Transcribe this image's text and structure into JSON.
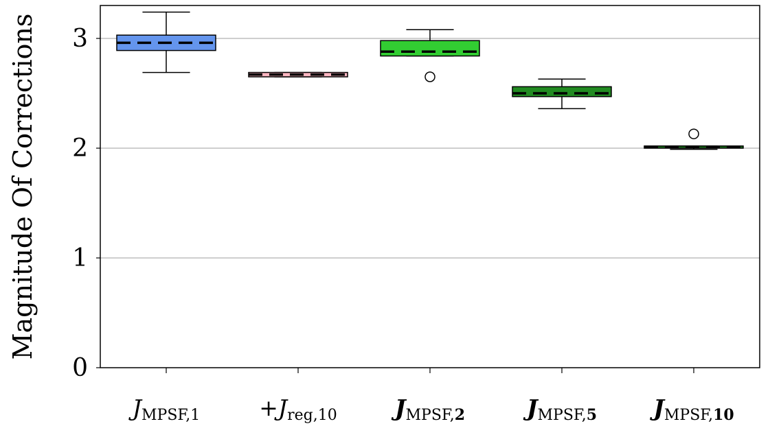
{
  "chart_data": {
    "type": "box",
    "title": "",
    "xlabel": "",
    "ylabel": "Magnitude Of Corrections",
    "ylim": [
      0,
      3.3
    ],
    "yticks": [
      "0",
      "1",
      "2",
      "3"
    ],
    "grid": "horizontal",
    "median_line_style": "dashed",
    "categories": [
      {
        "prefix": "",
        "main": "J",
        "sub": "MPSF,",
        "subnum": "1",
        "bold": false
      },
      {
        "prefix": "+",
        "main": "J",
        "sub": "reg,",
        "subnum": "10",
        "bold": false
      },
      {
        "prefix": "",
        "main": "J",
        "sub": "MPSF,",
        "subnum": "2",
        "bold": true
      },
      {
        "prefix": "",
        "main": "J",
        "sub": "MPSF,",
        "subnum": "5",
        "bold": true
      },
      {
        "prefix": "",
        "main": "J",
        "sub": "MPSF,",
        "subnum": "10",
        "bold": true
      }
    ],
    "boxes": [
      {
        "whisker_low": 2.69,
        "q1": 2.89,
        "median": 2.96,
        "q3": 3.03,
        "whisker_high": 3.24,
        "outliers": [],
        "color": "#6495ED"
      },
      {
        "whisker_low": 2.65,
        "q1": 2.65,
        "median": 2.67,
        "q3": 2.69,
        "whisker_high": 2.69,
        "outliers": [],
        "color": "#FFB6C1"
      },
      {
        "whisker_low": 2.84,
        "q1": 2.84,
        "median": 2.88,
        "q3": 2.98,
        "whisker_high": 3.08,
        "outliers": [
          2.65
        ],
        "color": "#32CD32"
      },
      {
        "whisker_low": 2.36,
        "q1": 2.47,
        "median": 2.5,
        "q3": 2.56,
        "whisker_high": 2.63,
        "outliers": [],
        "color": "#228B22"
      },
      {
        "whisker_low": 1.99,
        "q1": 2.0,
        "median": 2.01,
        "q3": 2.02,
        "whisker_high": 2.02,
        "outliers": [
          2.13
        ],
        "color": "#1E7B1E"
      }
    ]
  }
}
